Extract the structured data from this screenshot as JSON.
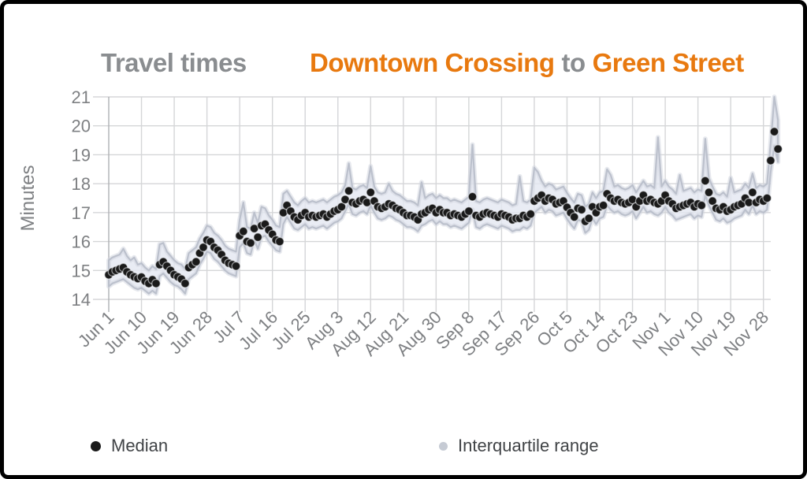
{
  "header": {
    "title_left": "Travel times",
    "route": {
      "from": "Downtown Crossing",
      "connector": "to",
      "to": "Green Street"
    }
  },
  "legend": {
    "items": [
      {
        "label": "Median",
        "marker": "black-dot",
        "marker_color": "#1a1a1a"
      },
      {
        "label": "Interquartile range",
        "marker": "gray-dot",
        "marker_color": "#c6cbd4"
      }
    ]
  },
  "colors": {
    "accent_orange": "#e8790f",
    "title_gray": "#8a8d90",
    "axis_text_gray": "#7e8083",
    "grid_gray": "#d5d6d8",
    "axis_line_gray": "#aeb0b3",
    "median_dot": "#1a1a1a",
    "band_fill": "#e3e7f1",
    "band_edge": "#b7bdc9",
    "border_black": "#000000"
  },
  "chart_data": {
    "type": "scatter",
    "title": "Travel times Downtown Crossing to Green Street",
    "xlabel": "",
    "ylabel": "Minutes",
    "ylim": [
      14,
      21
    ],
    "y_ticks": [
      14,
      15,
      16,
      17,
      18,
      19,
      20,
      21
    ],
    "grid": true,
    "legend_position": "bottom",
    "x_interval": "daily",
    "x_origin_label": "Jun 1",
    "x_tick_every_days": 9,
    "x_tick_labels": [
      "Jun 1",
      "Jun 10",
      "Jun 19",
      "Jun 28",
      "Jul 7",
      "Jul 16",
      "Jul 25",
      "Aug 3",
      "Aug 12",
      "Aug 21",
      "Aug 30",
      "Sep 8",
      "Sep 17",
      "Sep 26",
      "Oct 5",
      "Oct 14",
      "Oct 23",
      "Nov 1",
      "Nov 10",
      "Nov 19",
      "Nov 28"
    ],
    "series": [
      {
        "name": "Median",
        "type": "scatter",
        "color": "#1a1a1a",
        "values": [
          14.85,
          14.95,
          15.0,
          15.05,
          15.1,
          14.95,
          14.85,
          14.78,
          14.72,
          14.77,
          14.63,
          14.55,
          14.68,
          14.55,
          15.2,
          15.3,
          15.15,
          15.0,
          14.85,
          14.78,
          14.7,
          14.55,
          15.1,
          15.2,
          15.3,
          15.6,
          15.8,
          16.05,
          16.0,
          15.8,
          15.7,
          15.55,
          15.35,
          15.25,
          15.2,
          15.15,
          16.2,
          16.35,
          16.0,
          15.95,
          16.45,
          16.15,
          16.55,
          16.6,
          16.4,
          16.25,
          16.05,
          16.0,
          17.0,
          17.25,
          17.05,
          16.85,
          16.75,
          16.9,
          17.0,
          16.85,
          16.9,
          16.85,
          16.9,
          16.95,
          16.85,
          16.95,
          17.05,
          17.1,
          17.2,
          17.45,
          17.75,
          17.35,
          17.3,
          17.4,
          17.45,
          17.35,
          17.7,
          17.4,
          17.2,
          17.15,
          17.2,
          17.3,
          17.25,
          17.15,
          17.1,
          17.0,
          16.9,
          16.9,
          16.85,
          16.75,
          16.95,
          17.0,
          17.1,
          17.15,
          17.0,
          17.1,
          17.0,
          17.0,
          16.9,
          16.95,
          16.9,
          16.85,
          16.95,
          17.05,
          17.55,
          16.9,
          16.85,
          16.95,
          17.0,
          16.95,
          16.9,
          16.85,
          16.95,
          16.9,
          16.85,
          16.75,
          16.8,
          16.8,
          16.9,
          16.85,
          16.95,
          17.4,
          17.5,
          17.6,
          17.4,
          17.5,
          17.45,
          17.3,
          17.35,
          17.4,
          17.18,
          17.0,
          16.85,
          17.15,
          17.1,
          16.7,
          16.8,
          17.2,
          17.0,
          17.2,
          17.25,
          17.65,
          17.5,
          17.4,
          17.45,
          17.35,
          17.3,
          17.35,
          17.45,
          17.2,
          17.4,
          17.6,
          17.4,
          17.45,
          17.35,
          17.3,
          17.4,
          17.6,
          17.4,
          17.3,
          17.15,
          17.2,
          17.25,
          17.3,
          17.35,
          17.2,
          17.3,
          17.25,
          18.1,
          17.7,
          17.4,
          17.15,
          17.1,
          17.2,
          17.05,
          17.1,
          17.2,
          17.25,
          17.3,
          17.5,
          17.35,
          17.7,
          17.35,
          17.45,
          17.4,
          17.5,
          18.8,
          19.8,
          19.2
        ]
      },
      {
        "name": "Interquartile range",
        "type": "band",
        "color": "#e3e7f1",
        "low": [
          14.45,
          14.55,
          14.6,
          14.65,
          14.7,
          14.6,
          14.5,
          14.4,
          14.35,
          14.4,
          14.3,
          14.2,
          14.3,
          14.2,
          14.8,
          14.9,
          14.75,
          14.6,
          14.5,
          14.45,
          14.35,
          14.2,
          14.7,
          14.8,
          14.9,
          15.2,
          15.4,
          15.65,
          15.6,
          15.4,
          15.3,
          15.15,
          15.0,
          14.9,
          14.85,
          14.8,
          15.8,
          15.95,
          15.6,
          15.55,
          16.05,
          15.75,
          16.15,
          16.2,
          16.0,
          15.85,
          15.7,
          15.65,
          16.6,
          16.85,
          16.65,
          16.45,
          16.4,
          16.5,
          16.6,
          16.45,
          16.5,
          16.45,
          16.5,
          16.55,
          16.45,
          16.55,
          16.65,
          16.7,
          16.8,
          17.05,
          17.3,
          16.95,
          16.9,
          17.0,
          17.05,
          16.95,
          17.25,
          17.0,
          16.8,
          16.75,
          16.8,
          16.9,
          16.85,
          16.75,
          16.7,
          16.6,
          16.5,
          16.5,
          16.45,
          16.35,
          16.55,
          16.6,
          16.7,
          16.75,
          16.6,
          16.7,
          16.6,
          16.6,
          16.5,
          16.55,
          16.5,
          16.45,
          16.55,
          16.65,
          17.1,
          16.5,
          16.45,
          16.55,
          16.6,
          16.55,
          16.5,
          16.45,
          16.55,
          16.5,
          16.45,
          16.35,
          16.4,
          16.4,
          16.5,
          16.45,
          16.55,
          17.0,
          17.1,
          17.2,
          17.0,
          17.1,
          17.05,
          16.9,
          16.95,
          17.0,
          16.78,
          16.6,
          16.45,
          16.75,
          16.7,
          16.3,
          16.4,
          16.8,
          16.6,
          16.8,
          16.85,
          17.25,
          17.1,
          17.0,
          17.05,
          16.95,
          16.9,
          16.95,
          17.05,
          16.8,
          17.0,
          17.2,
          17.0,
          17.05,
          16.95,
          16.9,
          17.0,
          17.2,
          17.0,
          16.9,
          16.75,
          16.8,
          16.85,
          16.9,
          16.95,
          16.8,
          16.9,
          16.85,
          17.6,
          17.25,
          17.0,
          16.75,
          16.7,
          16.8,
          16.65,
          16.7,
          16.8,
          16.85,
          16.9,
          17.1,
          16.95,
          17.25,
          16.95,
          17.05,
          17.0,
          17.1,
          18.4,
          19.3,
          18.75
        ],
        "high": [
          15.35,
          15.45,
          15.5,
          15.55,
          15.75,
          15.5,
          15.35,
          15.45,
          15.2,
          15.25,
          15.1,
          15.0,
          15.15,
          15.05,
          15.9,
          15.95,
          15.65,
          15.5,
          15.35,
          15.25,
          15.2,
          15.05,
          15.6,
          15.7,
          15.8,
          16.1,
          16.3,
          16.55,
          16.5,
          16.3,
          16.2,
          16.05,
          15.85,
          15.75,
          15.7,
          15.65,
          16.75,
          17.35,
          16.5,
          16.45,
          17.0,
          16.65,
          17.2,
          17.15,
          16.9,
          16.75,
          16.55,
          16.5,
          17.65,
          17.75,
          17.55,
          17.35,
          17.25,
          17.4,
          17.5,
          17.35,
          17.4,
          17.35,
          17.4,
          17.45,
          17.35,
          17.45,
          17.55,
          17.6,
          17.7,
          17.95,
          18.7,
          17.85,
          17.8,
          17.9,
          17.95,
          17.85,
          18.6,
          17.9,
          17.7,
          17.65,
          17.7,
          18.0,
          17.75,
          17.65,
          17.6,
          17.5,
          17.4,
          17.4,
          17.35,
          17.25,
          18.05,
          17.5,
          17.6,
          17.65,
          17.5,
          17.6,
          17.5,
          17.5,
          17.4,
          17.45,
          17.4,
          17.35,
          17.45,
          17.55,
          19.35,
          17.4,
          17.35,
          17.45,
          17.5,
          17.45,
          17.4,
          17.35,
          17.45,
          17.4,
          17.35,
          17.25,
          17.3,
          18.25,
          17.4,
          17.35,
          17.45,
          18.55,
          18.4,
          18.1,
          17.9,
          18.0,
          17.95,
          17.8,
          17.85,
          17.9,
          17.68,
          17.5,
          17.35,
          17.65,
          17.6,
          17.2,
          17.3,
          17.7,
          17.5,
          17.7,
          17.75,
          18.5,
          18.3,
          17.9,
          17.95,
          17.85,
          17.8,
          17.85,
          17.95,
          17.7,
          17.9,
          18.1,
          17.9,
          17.95,
          17.85,
          19.6,
          17.9,
          18.1,
          17.9,
          17.8,
          17.65,
          18.3,
          17.75,
          17.8,
          17.85,
          17.7,
          17.8,
          17.75,
          19.55,
          18.2,
          17.9,
          17.65,
          17.6,
          17.7,
          17.55,
          18.2,
          17.7,
          17.75,
          17.8,
          18.0,
          17.85,
          18.35,
          17.85,
          17.95,
          17.9,
          18.0,
          19.4,
          21.0,
          20.2
        ]
      }
    ]
  }
}
